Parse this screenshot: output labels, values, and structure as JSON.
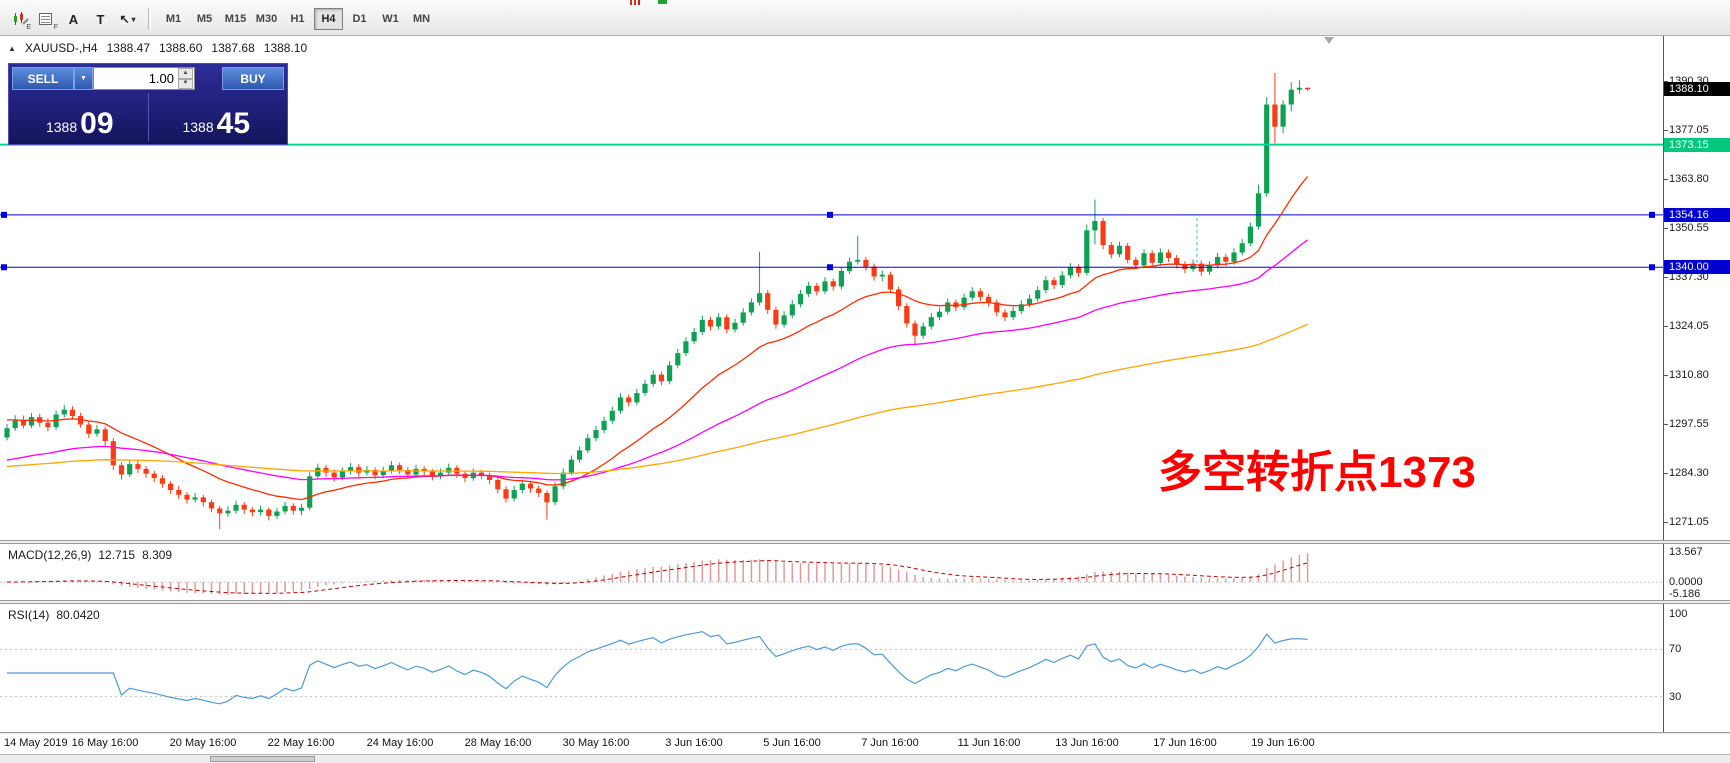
{
  "toolbar": {
    "text_icon_glyph": "A",
    "label_icon_glyph": "T",
    "timeframes": [
      {
        "label": "M1"
      },
      {
        "label": "M5"
      },
      {
        "label": "M15"
      },
      {
        "label": "M30"
      },
      {
        "label": "H1"
      },
      {
        "label": "H4",
        "active": true
      },
      {
        "label": "D1"
      },
      {
        "label": "W1"
      },
      {
        "label": "MN"
      }
    ]
  },
  "chart_header": {
    "collapse_glyph": "▲",
    "symbol": "XAUUSD-,H4",
    "open": "1388.47",
    "high": "1388.60",
    "low": "1387.68",
    "close": "1388.10"
  },
  "trade_panel": {
    "sell_label": "SELL",
    "buy_label": "BUY",
    "volume": "1.00",
    "sell_price_main": "1388",
    "sell_price_pips": "09",
    "buy_price_main": "1388",
    "buy_price_pips": "45"
  },
  "annotation": {
    "text": "多空转折点1373",
    "color": "#ff0000"
  },
  "price_axis": {
    "gridlines": [
      "1390.30",
      "1377.05",
      "1363.80",
      "1350.55",
      "1337.30",
      "1324.05",
      "1310.80",
      "1297.55",
      "1284.30",
      "1271.05"
    ],
    "current": {
      "value": "1388.10",
      "bg": "#000000"
    },
    "levels": [
      {
        "value": "1373.15",
        "bg": "#00c97e"
      },
      {
        "value": "1354.16",
        "bg": "#0000d0"
      },
      {
        "value": "1340.00",
        "bg": "#0000d0"
      }
    ]
  },
  "macd_panel": {
    "name": "MACD(12,26,9)",
    "value_main": "12.715",
    "value_signal": "8.309",
    "axis": [
      "13.567",
      "0.0000",
      "-5.186"
    ]
  },
  "rsi_panel": {
    "name": "RSI(14)",
    "value": "80.0420",
    "axis": [
      "100",
      "70",
      "30"
    ],
    "levels": [
      70,
      30
    ]
  },
  "time_axis": {
    "labels": [
      {
        "text": "14 May 2019",
        "bar": 0
      },
      {
        "text": "16 May 16:00",
        "bar": 12
      },
      {
        "text": "20 May 16:00",
        "bar": 24
      },
      {
        "text": "22 May 16:00",
        "bar": 36
      },
      {
        "text": "24 May 16:00",
        "bar": 48
      },
      {
        "text": "28 May 16:00",
        "bar": 60
      },
      {
        "text": "30 May 16:00",
        "bar": 72
      },
      {
        "text": "3 Jun 16:00",
        "bar": 84
      },
      {
        "text": "5 Jun 16:00",
        "bar": 96
      },
      {
        "text": "7 Jun 16:00",
        "bar": 108
      },
      {
        "text": "11 Jun 16:00",
        "bar": 120
      },
      {
        "text": "13 Jun 16:00",
        "bar": 132
      },
      {
        "text": "17 Jun 16:00",
        "bar": 144
      },
      {
        "text": "19 Jun 16:00",
        "bar": 156
      }
    ]
  },
  "chart_data": {
    "type": "candlestick",
    "symbol": "XAUUSD",
    "timeframe": "H4",
    "title": "XAUUSD- H4 with MACD(12,26,9) and RSI(14)",
    "y_axis": {
      "min": 1266.3,
      "max": 1402.5
    },
    "current_price": 1388.1,
    "hlines": [
      {
        "price": 1373.15,
        "color": "#00d68f",
        "width": 2,
        "selected": false
      },
      {
        "price": 1354.16,
        "color": "#0000e0",
        "width": 1,
        "selected": true
      },
      {
        "price": 1340.0,
        "color": "#0000e0",
        "width": 1,
        "selected": true
      }
    ],
    "moving_averages": [
      {
        "name": "fast",
        "period": 18,
        "color": "#ff2d00"
      },
      {
        "name": "medium",
        "period": 50,
        "color": "#ff00ff"
      },
      {
        "name": "slow",
        "period": 140,
        "color": "#ffa500"
      }
    ],
    "indicators": {
      "macd": {
        "params": [
          12,
          26,
          9
        ],
        "last_main": 12.715,
        "last_signal": 8.309,
        "range": [
          -5.186,
          13.567
        ]
      },
      "rsi": {
        "period": 14,
        "last": 80.042,
        "levels": [
          30,
          70
        ]
      }
    },
    "up_color": "#0fa153",
    "down_color": "#fb3b15",
    "ohlc": [
      [
        1294.0,
        1297.6,
        1293.2,
        1296.5
      ],
      [
        1296.5,
        1300.0,
        1295.8,
        1298.8
      ],
      [
        1298.8,
        1299.9,
        1296.4,
        1297.2
      ],
      [
        1297.2,
        1300.6,
        1296.5,
        1299.5
      ],
      [
        1299.5,
        1300.4,
        1296.9,
        1298.0
      ],
      [
        1298.0,
        1299.2,
        1295.7,
        1296.8
      ],
      [
        1296.8,
        1301.3,
        1296.0,
        1300.2
      ],
      [
        1300.2,
        1302.8,
        1299.4,
        1301.5
      ],
      [
        1301.5,
        1302.4,
        1298.8,
        1299.8
      ],
      [
        1299.8,
        1300.7,
        1296.6,
        1297.5
      ],
      [
        1297.5,
        1298.3,
        1293.9,
        1295.0
      ],
      [
        1295.0,
        1297.4,
        1294.2,
        1296.2
      ],
      [
        1296.2,
        1296.9,
        1291.8,
        1293.0
      ],
      [
        1293.0,
        1293.8,
        1285.2,
        1286.5
      ],
      [
        1286.5,
        1287.3,
        1282.6,
        1284.0
      ],
      [
        1284.0,
        1287.9,
        1283.3,
        1286.8
      ],
      [
        1286.8,
        1287.6,
        1284.4,
        1285.5
      ],
      [
        1285.5,
        1286.3,
        1283.1,
        1284.2
      ],
      [
        1284.2,
        1285.0,
        1281.9,
        1283.0
      ],
      [
        1283.0,
        1283.9,
        1280.4,
        1281.5
      ],
      [
        1281.5,
        1282.2,
        1278.7,
        1279.8
      ],
      [
        1279.8,
        1280.9,
        1277.3,
        1278.5
      ],
      [
        1278.5,
        1279.2,
        1276.1,
        1277.2
      ],
      [
        1277.2,
        1279.0,
        1276.4,
        1277.8
      ],
      [
        1277.8,
        1278.5,
        1275.3,
        1276.5
      ],
      [
        1276.5,
        1277.2,
        1273.8,
        1274.8
      ],
      [
        1274.8,
        1275.5,
        1269.2,
        1273.5
      ],
      [
        1273.5,
        1275.4,
        1272.6,
        1274.2
      ],
      [
        1274.2,
        1276.9,
        1273.4,
        1275.8
      ],
      [
        1275.8,
        1276.5,
        1273.3,
        1274.5
      ],
      [
        1274.5,
        1275.2,
        1272.7,
        1273.8
      ],
      [
        1273.8,
        1275.6,
        1272.9,
        1274.5
      ],
      [
        1274.5,
        1275.1,
        1271.6,
        1272.8
      ],
      [
        1272.8,
        1275.0,
        1272.0,
        1274.0
      ],
      [
        1274.0,
        1276.6,
        1273.2,
        1275.5
      ],
      [
        1275.5,
        1276.2,
        1273.1,
        1274.2
      ],
      [
        1274.2,
        1276.1,
        1273.0,
        1275.0
      ],
      [
        1275.0,
        1284.6,
        1274.3,
        1283.5
      ],
      [
        1283.5,
        1286.9,
        1282.7,
        1285.8
      ],
      [
        1285.8,
        1286.6,
        1283.4,
        1284.5
      ],
      [
        1284.5,
        1285.3,
        1282.1,
        1283.2
      ],
      [
        1283.2,
        1285.9,
        1282.4,
        1284.8
      ],
      [
        1284.8,
        1287.1,
        1284.0,
        1286.0
      ],
      [
        1286.0,
        1286.8,
        1283.4,
        1284.5
      ],
      [
        1284.5,
        1286.3,
        1283.7,
        1285.2
      ],
      [
        1285.2,
        1285.9,
        1282.7,
        1283.8
      ],
      [
        1283.8,
        1286.1,
        1283.0,
        1285.0
      ],
      [
        1285.0,
        1287.6,
        1284.2,
        1286.5
      ],
      [
        1286.5,
        1287.2,
        1284.1,
        1285.2
      ],
      [
        1285.2,
        1286.0,
        1282.9,
        1284.0
      ],
      [
        1284.0,
        1286.6,
        1283.2,
        1285.5
      ],
      [
        1285.5,
        1286.2,
        1283.7,
        1284.8
      ],
      [
        1284.8,
        1285.5,
        1282.4,
        1283.5
      ],
      [
        1283.5,
        1285.6,
        1282.7,
        1284.5
      ],
      [
        1284.5,
        1286.9,
        1283.8,
        1285.8
      ],
      [
        1285.8,
        1286.5,
        1283.1,
        1284.2
      ],
      [
        1284.2,
        1284.9,
        1281.9,
        1283.0
      ],
      [
        1283.0,
        1285.6,
        1282.3,
        1284.5
      ],
      [
        1284.5,
        1285.2,
        1282.7,
        1283.8
      ],
      [
        1283.8,
        1284.5,
        1281.4,
        1282.5
      ],
      [
        1282.5,
        1283.2,
        1278.9,
        1280.0
      ],
      [
        1280.0,
        1280.8,
        1276.4,
        1277.5
      ],
      [
        1277.5,
        1280.9,
        1276.7,
        1279.8
      ],
      [
        1279.8,
        1282.6,
        1279.0,
        1281.5
      ],
      [
        1281.5,
        1282.2,
        1279.1,
        1280.2
      ],
      [
        1280.2,
        1281.0,
        1277.9,
        1279.0
      ],
      [
        1279.0,
        1279.7,
        1271.8,
        1276.5
      ],
      [
        1276.5,
        1281.9,
        1275.7,
        1280.8
      ],
      [
        1280.8,
        1285.6,
        1280.0,
        1284.5
      ],
      [
        1284.5,
        1289.1,
        1283.8,
        1288.0
      ],
      [
        1288.0,
        1291.6,
        1287.2,
        1290.5
      ],
      [
        1290.5,
        1294.9,
        1289.8,
        1293.8
      ],
      [
        1293.8,
        1297.1,
        1293.0,
        1296.0
      ],
      [
        1296.0,
        1299.6,
        1295.2,
        1298.5
      ],
      [
        1298.5,
        1302.3,
        1297.7,
        1301.2
      ],
      [
        1301.2,
        1305.9,
        1300.4,
        1304.8
      ],
      [
        1304.8,
        1305.6,
        1302.4,
        1303.5
      ],
      [
        1303.5,
        1307.1,
        1302.7,
        1306.0
      ],
      [
        1306.0,
        1309.6,
        1305.2,
        1308.5
      ],
      [
        1308.5,
        1312.1,
        1307.7,
        1311.0
      ],
      [
        1311.0,
        1311.8,
        1308.1,
        1309.2
      ],
      [
        1309.2,
        1314.6,
        1308.4,
        1313.5
      ],
      [
        1313.5,
        1317.9,
        1312.7,
        1316.8
      ],
      [
        1316.8,
        1321.1,
        1316.0,
        1320.0
      ],
      [
        1320.0,
        1323.6,
        1319.2,
        1322.5
      ],
      [
        1322.5,
        1326.9,
        1321.7,
        1325.8
      ],
      [
        1325.8,
        1326.6,
        1322.9,
        1324.0
      ],
      [
        1324.0,
        1327.6,
        1323.2,
        1326.5
      ],
      [
        1326.5,
        1327.3,
        1322.1,
        1323.2
      ],
      [
        1323.2,
        1326.1,
        1322.4,
        1325.0
      ],
      [
        1325.0,
        1328.9,
        1324.2,
        1327.8
      ],
      [
        1327.8,
        1331.6,
        1327.0,
        1330.5
      ],
      [
        1330.5,
        1344.2,
        1329.7,
        1333.0
      ],
      [
        1333.0,
        1333.8,
        1327.4,
        1328.5
      ],
      [
        1328.5,
        1329.3,
        1323.4,
        1324.5
      ],
      [
        1324.5,
        1328.1,
        1323.7,
        1327.0
      ],
      [
        1327.0,
        1331.1,
        1326.2,
        1330.0
      ],
      [
        1330.0,
        1333.9,
        1329.2,
        1332.8
      ],
      [
        1332.8,
        1336.1,
        1332.0,
        1335.0
      ],
      [
        1335.0,
        1335.8,
        1332.4,
        1333.5
      ],
      [
        1333.5,
        1337.3,
        1332.7,
        1336.2
      ],
      [
        1336.2,
        1337.0,
        1333.7,
        1334.8
      ],
      [
        1334.8,
        1340.1,
        1334.0,
        1339.0
      ],
      [
        1339.0,
        1342.6,
        1338.2,
        1341.5
      ],
      [
        1341.5,
        1348.5,
        1340.7,
        1342.0
      ],
      [
        1342.0,
        1342.8,
        1339.1,
        1340.2
      ],
      [
        1340.2,
        1341.0,
        1336.4,
        1337.5
      ],
      [
        1337.5,
        1339.1,
        1336.2,
        1338.0
      ],
      [
        1338.0,
        1338.8,
        1332.9,
        1334.0
      ],
      [
        1334.0,
        1334.8,
        1328.4,
        1329.5
      ],
      [
        1329.5,
        1330.3,
        1323.7,
        1324.8
      ],
      [
        1324.8,
        1325.6,
        1319.0,
        1321.5
      ],
      [
        1321.5,
        1325.1,
        1320.7,
        1324.0
      ],
      [
        1324.0,
        1327.6,
        1323.2,
        1326.5
      ],
      [
        1326.5,
        1329.1,
        1325.7,
        1328.0
      ],
      [
        1328.0,
        1331.6,
        1327.2,
        1330.5
      ],
      [
        1330.5,
        1331.3,
        1328.1,
        1329.2
      ],
      [
        1329.2,
        1332.9,
        1328.4,
        1331.8
      ],
      [
        1331.8,
        1334.6,
        1331.0,
        1333.5
      ],
      [
        1333.5,
        1334.3,
        1330.9,
        1332.0
      ],
      [
        1332.0,
        1332.8,
        1329.4,
        1330.5
      ],
      [
        1330.5,
        1331.3,
        1326.7,
        1327.8
      ],
      [
        1327.8,
        1328.6,
        1325.4,
        1326.5
      ],
      [
        1326.5,
        1329.3,
        1325.7,
        1328.2
      ],
      [
        1328.2,
        1331.1,
        1327.4,
        1330.0
      ],
      [
        1330.0,
        1332.6,
        1329.2,
        1331.5
      ],
      [
        1331.5,
        1334.9,
        1330.7,
        1333.8
      ],
      [
        1333.8,
        1337.6,
        1333.0,
        1336.5
      ],
      [
        1336.5,
        1337.3,
        1334.1,
        1335.2
      ],
      [
        1335.2,
        1338.9,
        1334.4,
        1337.8
      ],
      [
        1337.8,
        1341.1,
        1337.0,
        1340.0
      ],
      [
        1340.0,
        1340.8,
        1337.4,
        1338.5
      ],
      [
        1338.5,
        1351.5,
        1337.8,
        1350.0
      ],
      [
        1350.0,
        1358.3,
        1346.2,
        1352.5
      ],
      [
        1352.5,
        1353.3,
        1344.9,
        1346.0
      ],
      [
        1346.0,
        1346.8,
        1342.4,
        1343.5
      ],
      [
        1343.5,
        1346.9,
        1342.7,
        1345.8
      ],
      [
        1345.8,
        1346.5,
        1341.1,
        1342.0
      ],
      [
        1342.0,
        1342.8,
        1339.4,
        1340.5
      ],
      [
        1340.5,
        1344.9,
        1339.7,
        1343.8
      ],
      [
        1343.8,
        1344.6,
        1340.1,
        1341.2
      ],
      [
        1341.2,
        1345.1,
        1340.4,
        1344.0
      ],
      [
        1344.0,
        1344.8,
        1341.4,
        1342.5
      ],
      [
        1342.5,
        1343.3,
        1339.7,
        1340.8
      ],
      [
        1340.8,
        1341.6,
        1338.4,
        1339.5
      ],
      [
        1339.5,
        1342.1,
        1338.7,
        1341.0
      ],
      [
        1341.0,
        1341.8,
        1337.7,
        1338.8
      ],
      [
        1338.8,
        1341.6,
        1338.0,
        1340.5
      ],
      [
        1340.5,
        1343.9,
        1339.7,
        1342.8
      ],
      [
        1342.8,
        1343.6,
        1340.4,
        1341.5
      ],
      [
        1341.5,
        1345.1,
        1340.7,
        1344.0
      ],
      [
        1344.0,
        1347.6,
        1343.2,
        1346.5
      ],
      [
        1346.5,
        1352.1,
        1345.7,
        1351.0
      ],
      [
        1351.0,
        1362.3,
        1350.2,
        1360.0
      ],
      [
        1360.0,
        1386.0,
        1359.0,
        1384.0
      ],
      [
        1384.0,
        1392.5,
        1373.5,
        1378.0
      ],
      [
        1378.0,
        1385.1,
        1376.2,
        1384.0
      ],
      [
        1384.0,
        1390.0,
        1382.1,
        1388.0
      ],
      [
        1388.0,
        1390.5,
        1386.9,
        1388.5
      ],
      [
        1388.5,
        1388.6,
        1387.7,
        1388.1
      ]
    ]
  }
}
